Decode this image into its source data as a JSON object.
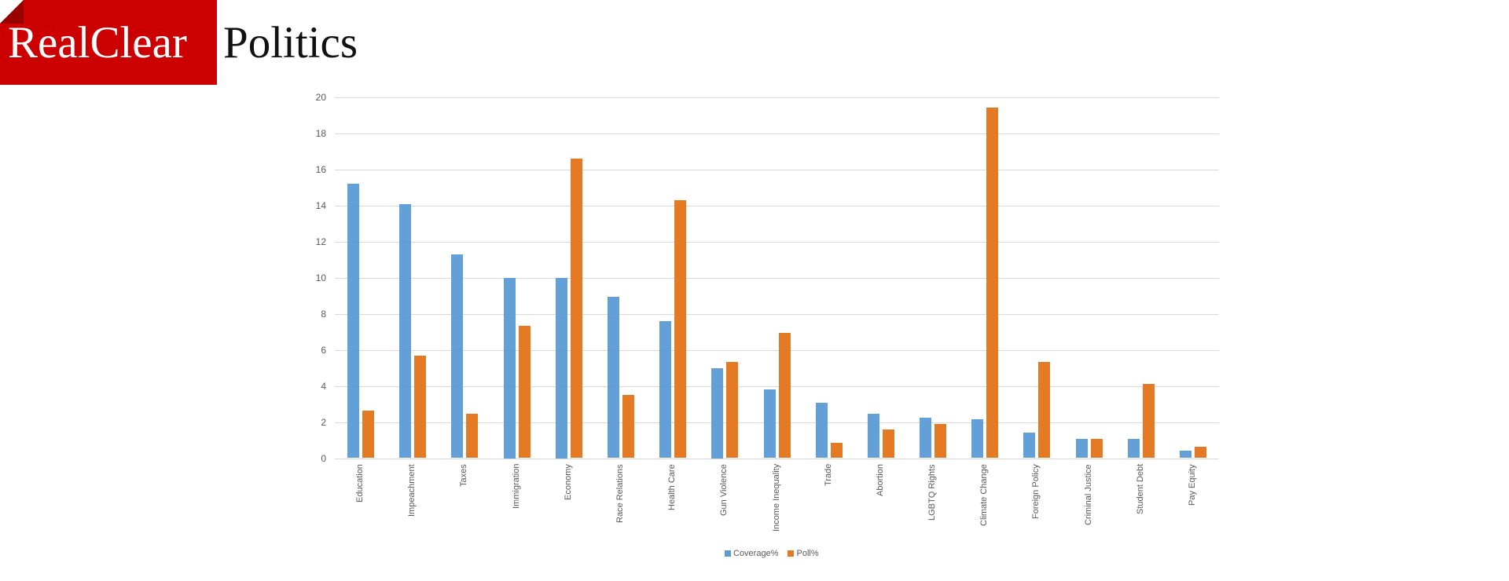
{
  "logo": {
    "part1": "RealClear",
    "part2": "Politics",
    "red": "#cc0000",
    "fold": "#990000"
  },
  "colors": {
    "coverage": "#5b9bd5",
    "poll": "#e57a24",
    "grid": "#d9d9d9",
    "text": "#595959"
  },
  "legend": {
    "items": [
      {
        "label": "Coverage%",
        "color": "#5b9bd5"
      },
      {
        "label": "Poll%",
        "color": "#e57a24"
      }
    ]
  },
  "y_ticks": [
    "0",
    "2",
    "4",
    "6",
    "8",
    "10",
    "12",
    "14",
    "16",
    "18",
    "20"
  ],
  "chart_data": {
    "type": "bar",
    "title": "",
    "xlabel": "",
    "ylabel": "",
    "ylim": [
      0,
      20
    ],
    "yticks": [
      0,
      2,
      4,
      6,
      8,
      10,
      12,
      14,
      16,
      18,
      20
    ],
    "grid": true,
    "legend_position": "bottom",
    "categories": [
      "Education",
      "Impeachment",
      "Taxes",
      "Immigration",
      "Economy",
      "Race Relations",
      "Health Care",
      "Gun Violence",
      "Income Inequality",
      "Trade",
      "Abortion",
      "LGBTQ Rights",
      "Climate Change",
      "Foreign Policy",
      "Criminal Justice",
      "Student Debt",
      "Pay Equity"
    ],
    "series": [
      {
        "name": "Coverage%",
        "color": "#5b9bd5",
        "values": [
          15.2,
          14.1,
          11.3,
          10.0,
          10.0,
          8.95,
          7.6,
          5.0,
          3.8,
          3.05,
          2.45,
          2.25,
          2.15,
          1.4,
          1.05,
          1.05,
          0.4
        ]
      },
      {
        "name": "Poll%",
        "color": "#e57a24",
        "values": [
          2.65,
          5.7,
          2.45,
          7.35,
          16.6,
          3.5,
          14.3,
          5.35,
          6.95,
          0.85,
          1.6,
          1.9,
          19.45,
          5.35,
          1.05,
          4.1,
          0.65
        ]
      }
    ]
  }
}
